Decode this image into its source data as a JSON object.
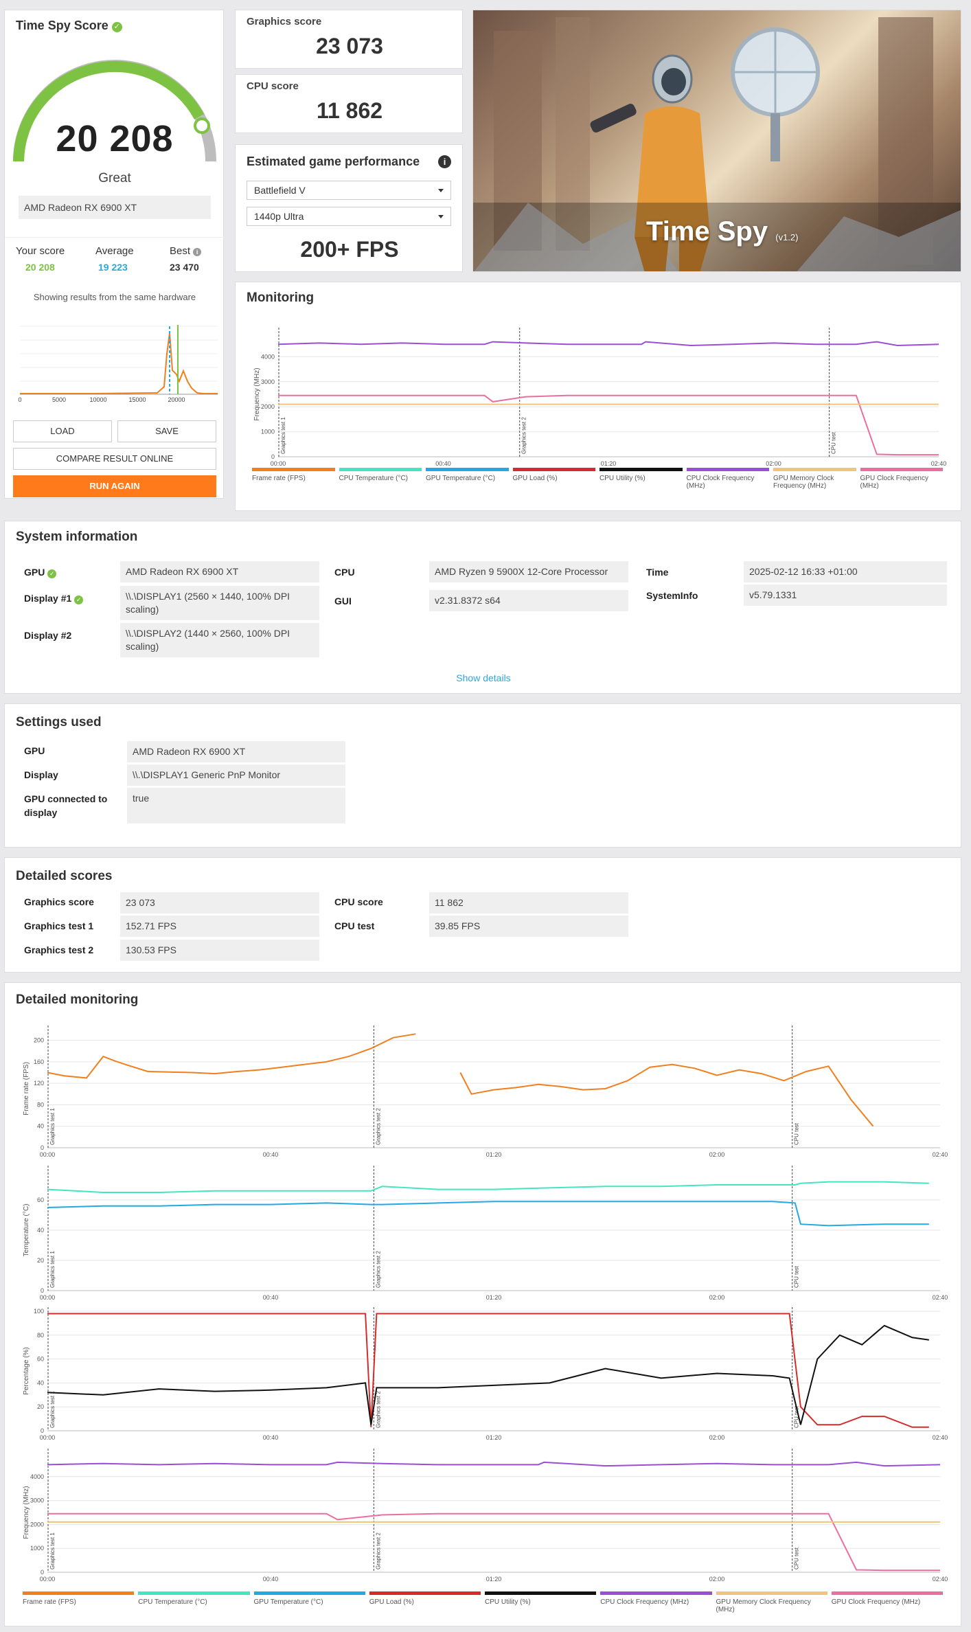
{
  "score_card": {
    "title": "Time Spy Score",
    "score": "20 208",
    "rating": "Great",
    "gpu": "AMD Radeon RX 6900 XT",
    "your_score_label": "Your score",
    "your_score": "20 208",
    "average_label": "Average",
    "average": "19 223",
    "best_label": "Best",
    "best": "23 470",
    "hardware_note": "Showing results from the same hardware",
    "dist_ticks": [
      "0",
      "5000",
      "10000",
      "15000",
      "20000"
    ],
    "load_label": "LOAD",
    "save_label": "SAVE",
    "compare_label": "COMPARE RESULT ONLINE",
    "run_label": "RUN AGAIN",
    "accent_green": "#7dc242",
    "accent_orange": "#ff7a1a",
    "average_color": "#29a8e0"
  },
  "graphics_score": {
    "label": "Graphics score",
    "value": "23 073"
  },
  "cpu_score": {
    "label": "CPU score",
    "value": "11 862"
  },
  "game_perf": {
    "title": "Estimated game performance",
    "game": "Battlefield V",
    "preset": "1440p Ultra",
    "fps": "200+ FPS"
  },
  "hero": {
    "title": "Time Spy",
    "version": "(v1.2)"
  },
  "monitoring": {
    "title": "Monitoring",
    "ylabel": "Frequency (MHz)",
    "x_ticks": [
      "00:00",
      "00:40",
      "01:20",
      "02:00",
      "02:40"
    ],
    "y_ticks": [
      "4000",
      "3000",
      "2000",
      "1000",
      "0"
    ],
    "markers": [
      "Graphics test 1",
      "Graphics test 2",
      "CPU test"
    ],
    "legend": [
      {
        "label": "Frame rate (FPS)",
        "color": "#f07f1f"
      },
      {
        "label": "CPU Temperature (°C)",
        "color": "#43e6c0"
      },
      {
        "label": "GPU Temperature (°C)",
        "color": "#23a8e6"
      },
      {
        "label": "GPU Load (%)",
        "color": "#d52b2b"
      },
      {
        "label": "CPU Utility (%)",
        "color": "#111111"
      },
      {
        "label": "CPU Clock Frequency (MHz)",
        "color": "#9a4ed6"
      },
      {
        "label": "GPU Memory Clock Frequency (MHz)",
        "color": "#f0c57a"
      },
      {
        "label": "GPU Clock Frequency (MHz)",
        "color": "#e96f9e"
      }
    ]
  },
  "system_info": {
    "title": "System information",
    "gpu_label": "GPU",
    "gpu": "AMD Radeon RX 6900 XT",
    "display1_label": "Display #1",
    "display1": "\\\\.\\DISPLAY1 (2560 × 1440, 100% DPI scaling)",
    "display2_label": "Display #2",
    "display2": "\\\\.\\DISPLAY2 (1440 × 2560, 100% DPI scaling)",
    "cpu_label": "CPU",
    "cpu": "AMD Ryzen 9 5900X 12-Core Processor",
    "gui_label": "GUI",
    "gui": "v2.31.8372 s64",
    "time_label": "Time",
    "time": "2025-02-12 16:33 +01:00",
    "sysinfo_label": "SystemInfo",
    "sysinfo": "v5.79.1331",
    "show_details": "Show details"
  },
  "settings": {
    "title": "Settings used",
    "gpu_label": "GPU",
    "gpu": "AMD Radeon RX 6900 XT",
    "display_label": "Display",
    "display": "\\\\.\\DISPLAY1 Generic PnP Monitor",
    "connected_label": "GPU connected to display",
    "connected": "true"
  },
  "detailed_scores": {
    "title": "Detailed scores",
    "gs_label": "Graphics score",
    "gs": "23 073",
    "gt1_label": "Graphics test 1",
    "gt1": "152.71 FPS",
    "gt2_label": "Graphics test 2",
    "gt2": "130.53 FPS",
    "cs_label": "CPU score",
    "cs": "11 862",
    "ct_label": "CPU test",
    "ct": "39.85 FPS"
  },
  "detailed_monitoring": {
    "title": "Detailed monitoring",
    "charts": [
      {
        "ylabel": "Frame rate (FPS)",
        "y_ticks": [
          "200",
          "160",
          "120",
          "80",
          "40",
          "0"
        ]
      },
      {
        "ylabel": "Temperature (°C)",
        "y_ticks": [
          "60",
          "40",
          "20",
          "0"
        ]
      },
      {
        "ylabel": "Percentage (%)",
        "y_ticks": [
          "100",
          "80",
          "60",
          "40",
          "20",
          "0"
        ]
      },
      {
        "ylabel": "Frequency (MHz)",
        "y_ticks": [
          "4000",
          "3000",
          "2000",
          "1000",
          "0"
        ]
      }
    ]
  },
  "chart_data": [
    {
      "type": "line",
      "ylabel": "Frequency (MHz)",
      "ylim": [
        0,
        5000
      ],
      "x": [
        0,
        10,
        20,
        30,
        40,
        50,
        52,
        60,
        70,
        80,
        88,
        89,
        100,
        110,
        120,
        130,
        140,
        145,
        150,
        160
      ],
      "series": [
        {
          "name": "CPU Clock Frequency (MHz)",
          "values": [
            4500,
            4550,
            4500,
            4550,
            4500,
            4500,
            4600,
            4550,
            4500,
            4500,
            4500,
            4600,
            4450,
            4500,
            4550,
            4500,
            4500,
            4600,
            4450,
            4500
          ]
        },
        {
          "name": "GPU Clock Frequency (MHz)",
          "values": [
            2450,
            2450,
            2450,
            2450,
            2450,
            2450,
            2200,
            2400,
            2450,
            2450,
            2450,
            2450,
            2450,
            2450,
            2450,
            2450,
            2450,
            100,
            80,
            80
          ]
        },
        {
          "name": "GPU Memory Clock Frequency (MHz)",
          "values": [
            2100,
            2100,
            2100,
            2100,
            2100,
            2100,
            2100,
            2100,
            2100,
            2100,
            2100,
            2100,
            2100,
            2100,
            2100,
            2100,
            2100,
            2100,
            2100,
            2100
          ]
        }
      ]
    },
    {
      "type": "line",
      "ylabel": "Frame rate (FPS)",
      "ylim": [
        0,
        220
      ],
      "x": [
        0,
        3,
        7,
        10,
        12,
        14,
        18,
        22,
        26,
        30,
        34,
        38,
        42,
        46,
        50,
        54,
        58,
        62,
        66,
        70,
        74,
        76,
        80,
        84,
        88,
        92,
        96,
        100,
        104,
        108,
        112,
        116,
        120,
        124,
        128,
        132,
        136,
        140,
        144,
        148
      ],
      "series": [
        {
          "name": "Frame rate (FPS)",
          "values": [
            140,
            134,
            130,
            170,
            162,
            155,
            142,
            141,
            140,
            138,
            142,
            145,
            150,
            155,
            160,
            170,
            185,
            205,
            212,
            null,
            140,
            100,
            108,
            112,
            118,
            114,
            108,
            110,
            125,
            150,
            155,
            148,
            135,
            145,
            138,
            125,
            142,
            152,
            90,
            40
          ]
        }
      ]
    },
    {
      "type": "line",
      "ylabel": "Temperature (°C)",
      "ylim": [
        0,
        80
      ],
      "x": [
        0,
        10,
        20,
        30,
        40,
        50,
        58,
        60,
        70,
        80,
        90,
        100,
        110,
        120,
        130,
        134,
        135,
        140,
        150,
        158
      ],
      "series": [
        {
          "name": "CPU Temperature (°C)",
          "values": [
            67,
            65,
            65,
            66,
            66,
            66,
            66,
            69,
            67,
            67,
            68,
            69,
            69,
            70,
            70,
            70,
            71,
            72,
            72,
            71
          ]
        },
        {
          "name": "GPU Temperature (°C)",
          "values": [
            55,
            56,
            56,
            57,
            57,
            58,
            57,
            57,
            58,
            59,
            59,
            59,
            59,
            59,
            59,
            58,
            44,
            43,
            44,
            44
          ]
        }
      ]
    },
    {
      "type": "line",
      "ylabel": "Percentage (%)",
      "ylim": [
        0,
        100
      ],
      "x": [
        0,
        10,
        20,
        30,
        40,
        50,
        57,
        58,
        59,
        70,
        80,
        90,
        95,
        100,
        110,
        120,
        130,
        133,
        135,
        138,
        142,
        146,
        150,
        155,
        158
      ],
      "series": [
        {
          "name": "GPU Load (%)",
          "values": [
            98,
            98,
            98,
            98,
            98,
            98,
            98,
            3,
            98,
            98,
            98,
            98,
            98,
            98,
            98,
            98,
            98,
            98,
            20,
            5,
            5,
            12,
            12,
            3,
            3
          ]
        },
        {
          "name": "CPU Utility (%)",
          "values": [
            32,
            30,
            35,
            33,
            34,
            36,
            40,
            5,
            36,
            36,
            38,
            40,
            46,
            52,
            44,
            48,
            46,
            44,
            5,
            60,
            80,
            72,
            88,
            78,
            76
          ]
        }
      ]
    }
  ]
}
